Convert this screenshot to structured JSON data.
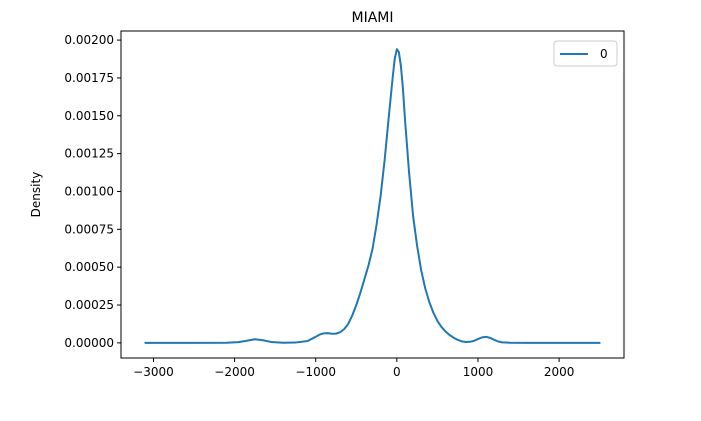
{
  "chart_data": {
    "type": "line",
    "title": "MIAMI",
    "xlabel": "",
    "ylabel": "Density",
    "xlim": [
      -3400,
      2800
    ],
    "ylim": [
      -0.0001,
      0.00206
    ],
    "x_ticks": [
      -3000,
      -2000,
      -1000,
      0,
      1000,
      2000
    ],
    "x_tick_labels": [
      "−3000",
      "−2000",
      "−1000",
      "0",
      "1000",
      "2000"
    ],
    "y_ticks": [
      0,
      0.00025,
      0.0005,
      0.00075,
      0.001,
      0.00125,
      0.0015,
      0.00175,
      0.002
    ],
    "y_tick_labels": [
      "0.00000",
      "0.00025",
      "0.00050",
      "0.00075",
      "0.00100",
      "0.00125",
      "0.00150",
      "0.00175",
      "0.00200"
    ],
    "grid": false,
    "legend_position": "top-right",
    "series": [
      {
        "name": "0",
        "color": "#1f77b4",
        "x": [
          -3100,
          -2500,
          -2100,
          -1950,
          -1850,
          -1750,
          -1650,
          -1550,
          -1400,
          -1250,
          -1100,
          -1000,
          -950,
          -900,
          -850,
          -800,
          -750,
          -700,
          -650,
          -600,
          -550,
          -500,
          -450,
          -400,
          -350,
          -300,
          -250,
          -200,
          -150,
          -100,
          -50,
          -25,
          0,
          25,
          50,
          75,
          100,
          150,
          200,
          250,
          300,
          350,
          400,
          450,
          500,
          550,
          600,
          650,
          700,
          750,
          800,
          850,
          900,
          950,
          1000,
          1050,
          1100,
          1150,
          1200,
          1250,
          1300,
          1400,
          1600,
          2000,
          2500
        ],
        "y": [
          0.0,
          0.0,
          1e-06,
          5e-06,
          1.4e-05,
          2.4e-05,
          1.7e-05,
          6e-06,
          1e-06,
          2e-06,
          1.2e-05,
          4e-05,
          5.5e-05,
          6.3e-05,
          6.4e-05,
          6e-05,
          6.1e-05,
          7e-05,
          9e-05,
          0.000125,
          0.00018,
          0.00025,
          0.00033,
          0.00042,
          0.00051,
          0.00062,
          0.00078,
          0.00097,
          0.00121,
          0.00149,
          0.00176,
          0.00188,
          0.00194,
          0.00192,
          0.00183,
          0.00168,
          0.00148,
          0.00113,
          0.00084,
          0.00064,
          0.00048,
          0.00036,
          0.00027,
          0.0002,
          0.000145,
          0.000105,
          7.5e-05,
          5.2e-05,
          3.4e-05,
          2e-05,
          1e-05,
          6e-06,
          7e-06,
          1.3e-05,
          2.5e-05,
          3.6e-05,
          4e-05,
          3.3e-05,
          2e-05,
          9e-06,
          3e-06,
          1e-06,
          0.0,
          0.0,
          0.0
        ]
      }
    ]
  }
}
